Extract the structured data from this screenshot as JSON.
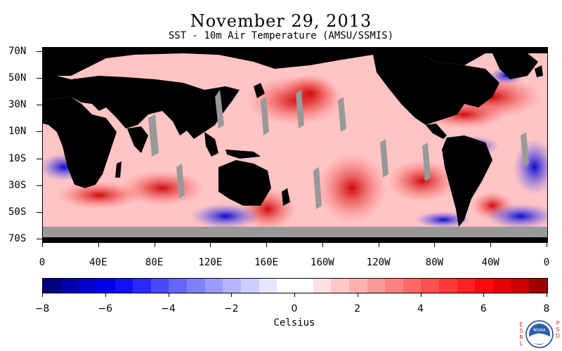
{
  "title": "November 29, 2013",
  "subtitle": "SST - 10m Air Temperature (AMSU/SSMIS)",
  "map": {
    "lat_labels": [
      "70N",
      "50N",
      "30N",
      "10N",
      "10S",
      "30S",
      "50S",
      "70S"
    ],
    "lon_labels": [
      "0",
      "40E",
      "80E",
      "120E",
      "160E",
      "160W",
      "120W",
      "80W",
      "40W",
      "0"
    ],
    "colors": {
      "land": "#000000",
      "missing": "#999999"
    }
  },
  "colorbar": {
    "tick_labels": [
      "−8",
      "−6",
      "−4",
      "−2",
      "0",
      "2",
      "4",
      "6",
      "8"
    ],
    "unit_label": "Celsius",
    "colors": [
      "#000080",
      "#0000a8",
      "#0000cc",
      "#0000e6",
      "#1010ff",
      "#2a2aff",
      "#4848ff",
      "#6666ff",
      "#8080ff",
      "#9a9aff",
      "#b4b4ff",
      "#cdcdff",
      "#e6e6ff",
      "#ffffff",
      "#ffffff",
      "#ffe0e0",
      "#ffc8c8",
      "#ffb0b0",
      "#ff9898",
      "#ff8080",
      "#ff6868",
      "#ff5050",
      "#ff3838",
      "#ff2020",
      "#ff0808",
      "#e60000",
      "#cc0000",
      "#a00000"
    ]
  },
  "logo": {
    "left_letters": [
      "E",
      "S",
      "R",
      "L"
    ],
    "right_letters": [
      "P",
      "S",
      "D"
    ],
    "text": "NOAA"
  }
}
